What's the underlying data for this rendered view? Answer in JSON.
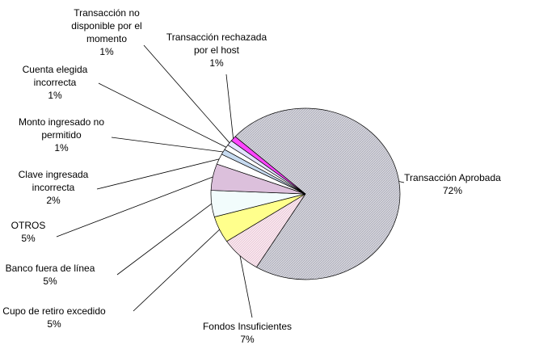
{
  "chart_data": {
    "type": "pie",
    "categories": [
      "Transacción Aprobada",
      "Fondos Insuficientes",
      "Cupo de retiro excedido",
      "Banco fuera de línea",
      "OTROS",
      "Clave ingresada incorrecta",
      "Monto ingresado no permitido",
      "Cuenta elegida incorrecta",
      "Transacción no disponible por el momento",
      "Transacción rechazada por el host"
    ],
    "values": [
      72,
      7,
      5,
      5,
      5,
      2,
      1,
      1,
      1,
      1
    ],
    "value_labels": [
      "72%",
      "7%",
      "5%",
      "5%",
      "5%",
      "2%",
      "1%",
      "1%",
      "1%",
      "1%"
    ],
    "colors": [
      "#c4c4d0",
      "#f6dde6",
      "#ffff8c",
      "#f2fcfc",
      "#dcc0dc",
      "#ffffff",
      "#c6daf0",
      "#ffffff",
      "#e2e2ff",
      "#ff44ff"
    ]
  }
}
